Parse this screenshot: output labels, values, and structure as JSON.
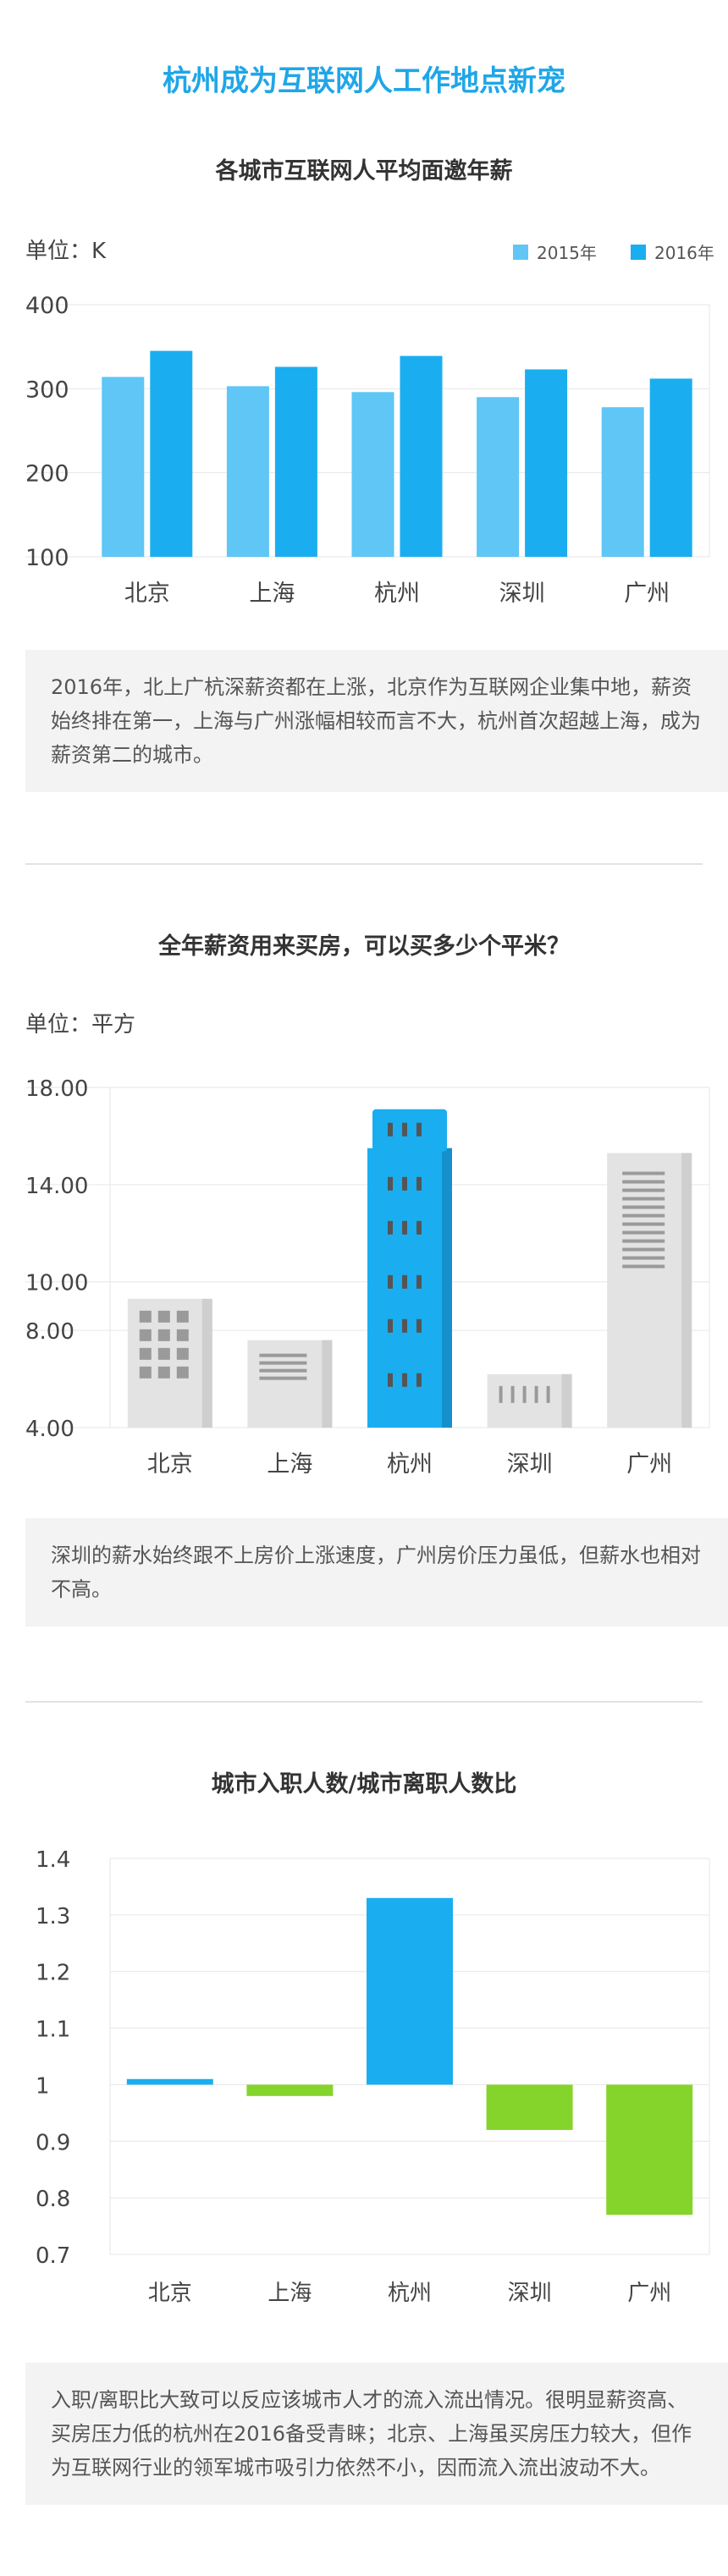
{
  "page": {
    "title": "杭州成为互联网人工作地点新宠"
  },
  "colors": {
    "title": "#1fa6e8",
    "s2015": "#5fc6f6",
    "s2016": "#1aaef0",
    "highlight": "#1aaef0",
    "building": "#e3e3e3",
    "positive": "#1aaef0",
    "negative": "#84d42b"
  },
  "sections": [
    {
      "title": "各城市互联网人平均面邀年薪",
      "unit": "单位：K",
      "note": "2016年，北上广杭深薪资都在上涨，北京作为互联网企业集中地，薪资始终排在第一，上海与广州涨幅相较而言不大，杭州首次超越上海，成为薪资第二的城市。"
    },
    {
      "title": "全年薪资用来买房，可以买多少个平米？",
      "unit": "单位：平方",
      "note": "深圳的薪水始终跟不上房价上涨速度，广州房价压力虽低，但薪水也相对不高。"
    },
    {
      "title": "城市入职人数/城市离职人数比",
      "note": "入职/离职比大致可以反应该城市人才的流入流出情况。很明显薪资高、买房压力低的杭州在2016备受青睐；北京、上海虽买房压力较大，但作为互联网行业的领军城市吸引力依然不小，因而流入流出波动不大。"
    }
  ],
  "chart_data": [
    {
      "type": "bar",
      "title": "各城市互联网人平均面邀年薪",
      "ylabel": "单位：K",
      "categories": [
        "北京",
        "上海",
        "杭州",
        "深圳",
        "广州"
      ],
      "series": [
        {
          "name": "2015年",
          "values": [
            314,
            303,
            296,
            290,
            278
          ]
        },
        {
          "name": "2016年",
          "values": [
            345,
            326,
            339,
            323,
            312
          ]
        }
      ],
      "ylim": [
        100,
        400
      ],
      "yticks": [
        "100",
        "200",
        "300",
        "400"
      ],
      "legend": "top-right",
      "grid": true
    },
    {
      "type": "bar",
      "title": "全年薪资用来买房，可以买多少个平米？",
      "ylabel": "单位：平方",
      "categories": [
        "北京",
        "上海",
        "杭州",
        "深圳",
        "广州"
      ],
      "values": [
        9.3,
        7.6,
        15.5,
        6.2,
        15.3
      ],
      "ylim": [
        4,
        18
      ],
      "yticks": [
        "4.00",
        "8.00",
        "10.00",
        "14.00",
        "18.00"
      ],
      "highlight": "杭州",
      "grid": true
    },
    {
      "type": "bar",
      "title": "城市入职人数/城市离职人数比",
      "categories": [
        "北京",
        "上海",
        "杭州",
        "深圳",
        "广州"
      ],
      "values": [
        1.01,
        0.98,
        1.33,
        0.92,
        0.77
      ],
      "baseline": 1,
      "ylim": [
        0.7,
        1.4
      ],
      "yticks": [
        "0.7",
        "0.8",
        "0.9",
        "1",
        "1.1",
        "1.2",
        "1.3",
        "1.4"
      ],
      "grid": true
    }
  ]
}
